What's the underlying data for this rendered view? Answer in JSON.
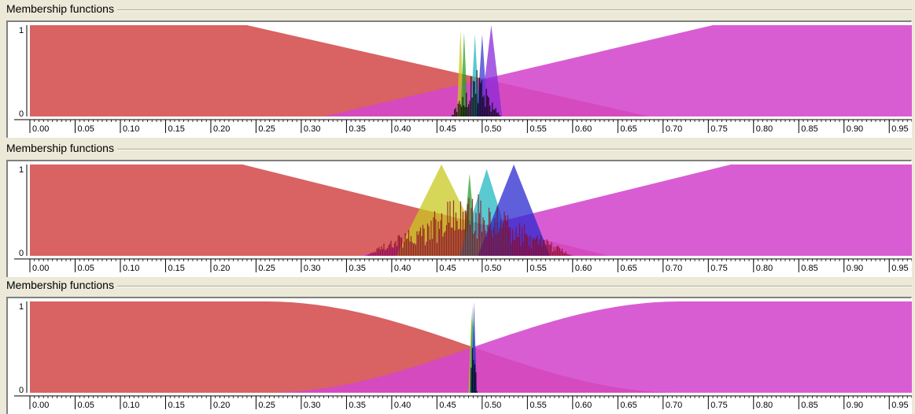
{
  "chart_data": [
    {
      "type": "area",
      "title": "Membership functions",
      "x_ticks": [
        "0.00",
        "0.05",
        "0.10",
        "0.15",
        "0.20",
        "0.25",
        "0.30",
        "0.35",
        "0.40",
        "0.45",
        "0.50",
        "0.55",
        "0.60",
        "0.65",
        "0.70",
        "0.75",
        "0.80",
        "0.85",
        "0.90",
        "0.95"
      ],
      "y_ticks": [
        "1",
        "0"
      ],
      "xlim": [
        0,
        0.975
      ],
      "ylim": [
        0,
        1
      ],
      "series": [
        {
          "shape": "line",
          "color": "#d44c4c",
          "x": [
            0,
            0.24,
            0.685
          ],
          "y": [
            1,
            1,
            0
          ]
        },
        {
          "shape": "line",
          "color": "#d447cc",
          "x": [
            0.325,
            0.755,
            0.975
          ],
          "y": [
            0,
            1,
            1
          ]
        },
        {
          "shape": "triangle",
          "color": "#c8c820",
          "x": [
            0.472,
            0.476,
            0.48
          ],
          "y": [
            0,
            0.95,
            0
          ]
        },
        {
          "shape": "triangle",
          "color": "#2aa02a",
          "x": [
            0.476,
            0.48,
            0.484
          ],
          "y": [
            0,
            0.92,
            0
          ]
        },
        {
          "shape": "triangle",
          "color": "#22b8c0",
          "x": [
            0.487,
            0.492,
            0.497
          ],
          "y": [
            0,
            0.9,
            0
          ]
        },
        {
          "shape": "triangle",
          "color": "#3a3ad0",
          "x": [
            0.494,
            0.5,
            0.506
          ],
          "y": [
            0,
            0.9,
            0
          ]
        },
        {
          "shape": "triangle",
          "color": "#8a2ad8",
          "x": [
            0.498,
            0.51,
            0.522
          ],
          "y": [
            0,
            1,
            0
          ]
        }
      ],
      "histogram": {
        "color": "#000000",
        "xrange": [
          0.465,
          0.52
        ],
        "ymax": 0.55
      }
    },
    {
      "type": "area",
      "title": "Membership functions",
      "x_ticks": [
        "0.00",
        "0.05",
        "0.10",
        "0.15",
        "0.20",
        "0.25",
        "0.30",
        "0.35",
        "0.40",
        "0.45",
        "0.50",
        "0.55",
        "0.60",
        "0.65",
        "0.70",
        "0.75",
        "0.80",
        "0.85",
        "0.90",
        "0.95"
      ],
      "y_ticks": [
        "1",
        "0"
      ],
      "xlim": [
        0,
        0.975
      ],
      "ylim": [
        0,
        1
      ],
      "series": [
        {
          "shape": "line",
          "color": "#d44c4c",
          "x": [
            0,
            0.235,
            0.64
          ],
          "y": [
            1,
            1,
            0
          ]
        },
        {
          "shape": "line",
          "color": "#d447cc",
          "x": [
            0.365,
            0.775,
            0.975
          ],
          "y": [
            0,
            1,
            1
          ]
        },
        {
          "shape": "triangle",
          "color": "#c8c820",
          "x": [
            0.405,
            0.455,
            0.505
          ],
          "y": [
            0,
            1,
            0
          ]
        },
        {
          "shape": "triangle",
          "color": "#2aa02a",
          "x": [
            0.478,
            0.486,
            0.494
          ],
          "y": [
            0,
            0.9,
            0
          ]
        },
        {
          "shape": "triangle",
          "color": "#22b8c0",
          "x": [
            0.475,
            0.505,
            0.535
          ],
          "y": [
            0,
            0.95,
            0
          ]
        },
        {
          "shape": "triangle",
          "color": "#2a2ad0",
          "x": [
            0.495,
            0.535,
            0.575
          ],
          "y": [
            0,
            1,
            0
          ]
        }
      ],
      "histogram": {
        "color": "#8a0a20",
        "xrange": [
          0.37,
          0.6
        ],
        "ymax": 0.75
      }
    },
    {
      "type": "area",
      "title": "Membership functions",
      "x_ticks": [
        "0.00",
        "0.05",
        "0.10",
        "0.15",
        "0.20",
        "0.25",
        "0.30",
        "0.35",
        "0.40",
        "0.45",
        "0.50",
        "0.55",
        "0.60",
        "0.65",
        "0.70",
        "0.75",
        "0.80",
        "0.85",
        "0.90",
        "0.95"
      ],
      "y_ticks": [
        "1",
        "0"
      ],
      "xlim": [
        0,
        0.975
      ],
      "ylim": [
        0,
        1
      ],
      "series": [
        {
          "shape": "sigmoid_down",
          "color": "#d44c4c",
          "center": 0.49,
          "width": 0.23
        },
        {
          "shape": "sigmoid_up",
          "color": "#d447cc",
          "center": 0.49,
          "width": 0.23
        },
        {
          "shape": "triangle",
          "color": "#c8c820",
          "x": [
            0.485,
            0.488,
            0.491
          ],
          "y": [
            0,
            0.85,
            0
          ]
        },
        {
          "shape": "triangle",
          "color": "#2aa02a",
          "x": [
            0.486,
            0.489,
            0.492
          ],
          "y": [
            0,
            0.95,
            0
          ]
        },
        {
          "shape": "triangle",
          "color": "#22b8c0",
          "x": [
            0.487,
            0.49,
            0.493
          ],
          "y": [
            0,
            0.8,
            0
          ]
        },
        {
          "shape": "triangle",
          "color": "#2a2ad0",
          "x": [
            0.488,
            0.491,
            0.494
          ],
          "y": [
            0,
            1,
            0
          ]
        }
      ],
      "histogram": {
        "color": "#000000",
        "xrange": [
          0.486,
          0.494
        ],
        "ymax": 0.9
      }
    }
  ]
}
